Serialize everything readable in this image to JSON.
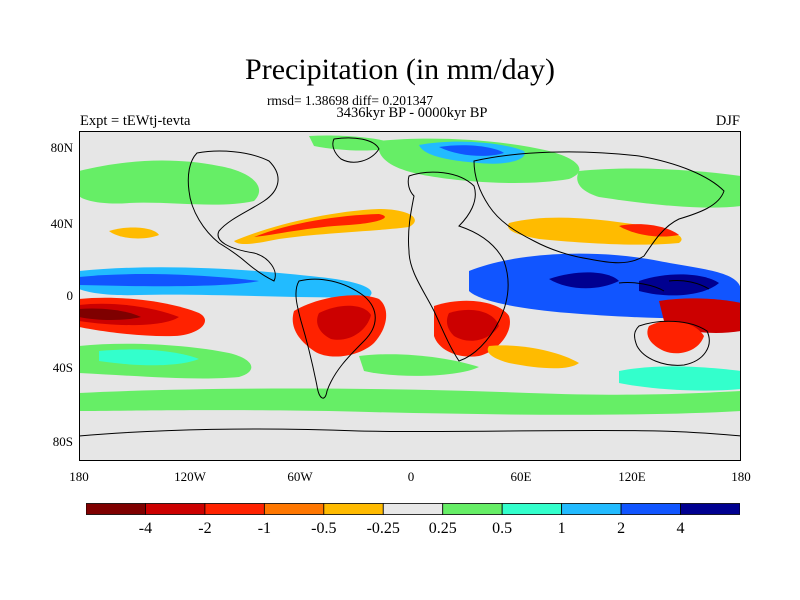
{
  "figure": {
    "title": "Precipitation (in mm/day)",
    "stats": "rmsd= 1.38698 diff= 0.201347",
    "period": "3436kyr BP - 0000kyr BP",
    "experiment": "Expt = tEWtj-tevta",
    "season": "DJF"
  },
  "axes": {
    "lat_ticks": [
      "80N",
      "40N",
      "0",
      "40S",
      "80S"
    ],
    "lon_ticks": [
      "180",
      "120W",
      "60W",
      "0",
      "60E",
      "120E",
      "180"
    ]
  },
  "colorbar": {
    "colors": [
      "#7f0000",
      "#cc0000",
      "#ff2200",
      "#ff7700",
      "#ffbb00",
      "#e8e8e8",
      "#66ee66",
      "#33ffcc",
      "#22bbff",
      "#1155ff",
      "#000090"
    ],
    "labels": [
      "-4",
      "-2",
      "-1",
      "-0.5",
      "-0.25",
      "0.25",
      "0.5",
      "1",
      "2",
      "4"
    ]
  },
  "map_fill": {
    "background": "#e6e6e6",
    "anomaly_colors": {
      "strong_dry": "#7f0000",
      "dry": "#cc0000",
      "mod_dry": "#ff2200",
      "light_dry": "#ff7700",
      "very_light_dry": "#ffbb00",
      "light_wet": "#66ee66",
      "mod_wet": "#33ffcc",
      "wet": "#22bbff",
      "very_wet": "#1155ff",
      "strong_wet": "#000090"
    }
  }
}
